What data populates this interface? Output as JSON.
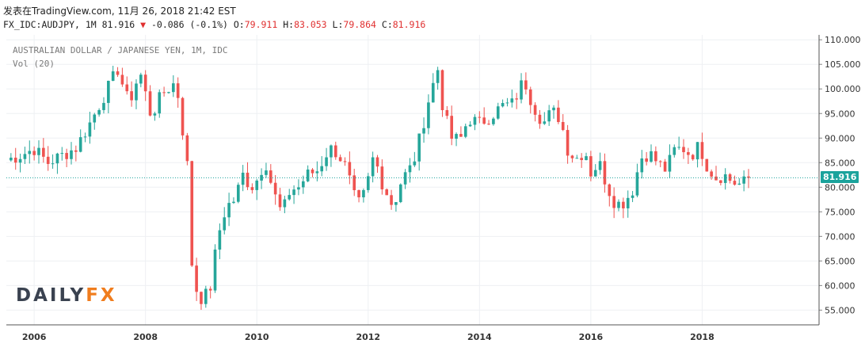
{
  "header": {
    "source": "发表在TradingView.com, 11月 26, 2018 21:42 EST",
    "symbol_line": "FX_IDC:AUDJPY, 1M 81.916",
    "change": "-0.086 (-0.1%)",
    "o_label": "O:",
    "o_value": "79.911",
    "h_label": "H:",
    "h_value": "83.053",
    "l_label": "L:",
    "l_value": "79.864",
    "c_label": "C:",
    "c_value": "81.916"
  },
  "legend": {
    "title": "AUSTRALIAN DOLLAR / JAPANESE YEN, 1M, IDC",
    "volume": "Vol (20)"
  },
  "logo": {
    "part1": "DAILY",
    "part2": "FX"
  },
  "colors": {
    "up": "#26a69a",
    "down": "#ef5350",
    "last_price": "#1ba39c",
    "grid": "#eef0f3"
  },
  "chart_data": {
    "type": "candlestick",
    "title": "AUSTRALIAN DOLLAR / JAPANESE YEN, 1M, IDC",
    "xlabel": "",
    "ylabel": "",
    "ylim": [
      52,
      111
    ],
    "xlim": [
      2005.5,
      2020.1
    ],
    "y_ticks": [
      "55.000",
      "60.000",
      "65.000",
      "70.000",
      "75.000",
      "80.000",
      "85.000",
      "90.000",
      "95.000",
      "100.000",
      "105.000",
      "110.000"
    ],
    "x_ticks": [
      "2006",
      "2008",
      "2010",
      "2012",
      "2014",
      "2016",
      "2018"
    ],
    "last_price": 81.916,
    "last_price_label": "81.916",
    "series_description": "Monthly AUDJPY, one point per period: [year_fraction, close]",
    "closes": [
      [
        2005.5,
        85.5
      ],
      [
        2005.75,
        86.5
      ],
      [
        2006.0,
        87.8
      ],
      [
        2006.25,
        85.0
      ],
      [
        2006.5,
        86.5
      ],
      [
        2006.75,
        88.0
      ],
      [
        2007.0,
        93.0
      ],
      [
        2007.25,
        98.5
      ],
      [
        2007.5,
        104.0
      ],
      [
        2007.7,
        97.0
      ],
      [
        2007.9,
        103.5
      ],
      [
        2008.1,
        94.5
      ],
      [
        2008.3,
        99.0
      ],
      [
        2008.55,
        101.5
      ],
      [
        2008.75,
        84.5
      ],
      [
        2008.85,
        60.5
      ],
      [
        2009.0,
        57.5
      ],
      [
        2009.15,
        58.5
      ],
      [
        2009.3,
        70.0
      ],
      [
        2009.45,
        76.0
      ],
      [
        2009.6,
        77.5
      ],
      [
        2009.75,
        82.5
      ],
      [
        2009.9,
        80.0
      ],
      [
        2010.0,
        81.5
      ],
      [
        2010.15,
        85.5
      ],
      [
        2010.3,
        79.0
      ],
      [
        2010.45,
        74.5
      ],
      [
        2010.6,
        79.5
      ],
      [
        2010.75,
        80.0
      ],
      [
        2010.9,
        82.5
      ],
      [
        2011.1,
        83.5
      ],
      [
        2011.3,
        88.0
      ],
      [
        2011.45,
        87.0
      ],
      [
        2011.6,
        84.0
      ],
      [
        2011.8,
        76.0
      ],
      [
        2011.95,
        79.0
      ],
      [
        2012.1,
        86.5
      ],
      [
        2012.25,
        81.0
      ],
      [
        2012.45,
        76.0
      ],
      [
        2012.6,
        81.5
      ],
      [
        2012.8,
        84.5
      ],
      [
        2012.95,
        91.0
      ],
      [
        2013.1,
        98.5
      ],
      [
        2013.25,
        104.0
      ],
      [
        2013.35,
        95.5
      ],
      [
        2013.5,
        90.0
      ],
      [
        2013.65,
        89.5
      ],
      [
        2013.8,
        94.0
      ],
      [
        2014.0,
        93.0
      ],
      [
        2014.2,
        94.5
      ],
      [
        2014.4,
        96.5
      ],
      [
        2014.6,
        97.0
      ],
      [
        2014.8,
        102.0
      ],
      [
        2014.95,
        97.0
      ],
      [
        2015.15,
        93.0
      ],
      [
        2015.3,
        95.5
      ],
      [
        2015.45,
        94.0
      ],
      [
        2015.6,
        87.0
      ],
      [
        2015.75,
        86.0
      ],
      [
        2015.9,
        87.5
      ],
      [
        2016.0,
        83.0
      ],
      [
        2016.15,
        85.0
      ],
      [
        2016.3,
        80.0
      ],
      [
        2016.45,
        76.5
      ],
      [
        2016.6,
        77.0
      ],
      [
        2016.75,
        79.5
      ],
      [
        2016.9,
        86.0
      ],
      [
        2017.05,
        87.0
      ],
      [
        2017.2,
        85.0
      ],
      [
        2017.35,
        83.5
      ],
      [
        2017.5,
        87.5
      ],
      [
        2017.65,
        88.0
      ],
      [
        2017.8,
        86.5
      ],
      [
        2017.95,
        88.5
      ],
      [
        2018.1,
        84.0
      ],
      [
        2018.25,
        82.0
      ],
      [
        2018.4,
        82.5
      ],
      [
        2018.55,
        81.0
      ],
      [
        2018.7,
        80.5
      ],
      [
        2018.85,
        81.916
      ]
    ]
  }
}
